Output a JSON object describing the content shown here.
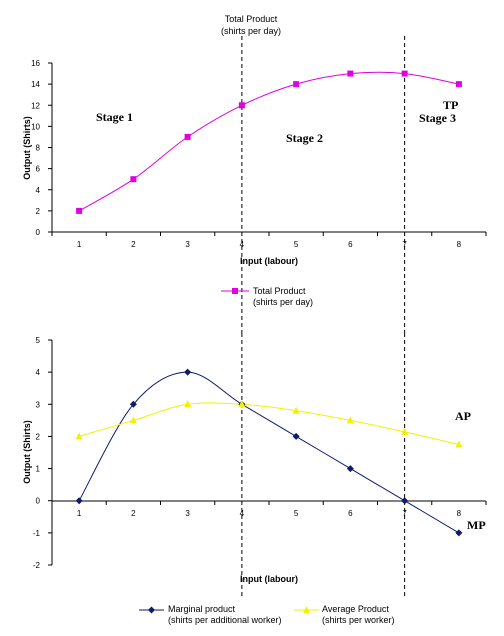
{
  "header": {
    "line1": "Total Product",
    "line2": "(shirts per day)"
  },
  "stage_labels": {
    "stage1": "Stage 1",
    "stage2": "Stage 2",
    "stage3": "Stage 3"
  },
  "curve_labels": {
    "tp": "TP",
    "ap": "AP",
    "mp": "MP"
  },
  "chart_data": [
    {
      "type": "line",
      "xlabel": "Input (labour)",
      "ylabel": "Output (Shirts)",
      "x": [
        1,
        2,
        3,
        4,
        5,
        6,
        7,
        8
      ],
      "xlim": [
        0.5,
        8.5
      ],
      "ylim": [
        0,
        16
      ],
      "yticks": [
        0,
        2,
        4,
        6,
        8,
        10,
        12,
        14,
        16
      ],
      "grid": false,
      "legend": "bottom",
      "stage_dividers": [
        4,
        7
      ],
      "series": [
        {
          "name_line1": "Total Product",
          "name_line2": "(shirts per day)",
          "color": "#E000E0",
          "marker": "square",
          "values": [
            2,
            5,
            9,
            12,
            14,
            15,
            15,
            14
          ]
        }
      ]
    },
    {
      "type": "line",
      "xlabel": "Input (labour)",
      "ylabel": "Output (Shirts)",
      "x": [
        1,
        2,
        3,
        4,
        5,
        6,
        7,
        8
      ],
      "xlim": [
        0.5,
        8.5
      ],
      "ylim": [
        -2,
        5
      ],
      "yticks": [
        -2,
        -1,
        0,
        1,
        2,
        3,
        4,
        5
      ],
      "grid": false,
      "legend": "bottom",
      "stage_dividers": [
        4,
        7
      ],
      "series": [
        {
          "name_line1": "Marginal product",
          "name_line2": "(shirts per additional worker)",
          "color": "#0D1A6E",
          "marker": "diamond",
          "values": [
            0,
            3,
            4,
            3,
            2,
            1,
            0,
            -1
          ]
        },
        {
          "name_line1": "Average Product",
          "name_line2": "(shirts per worker)",
          "color": "#F2F200",
          "marker": "triangle",
          "values": [
            2,
            2.5,
            3,
            3,
            2.8,
            2.5,
            2.14,
            1.75
          ]
        }
      ]
    }
  ]
}
